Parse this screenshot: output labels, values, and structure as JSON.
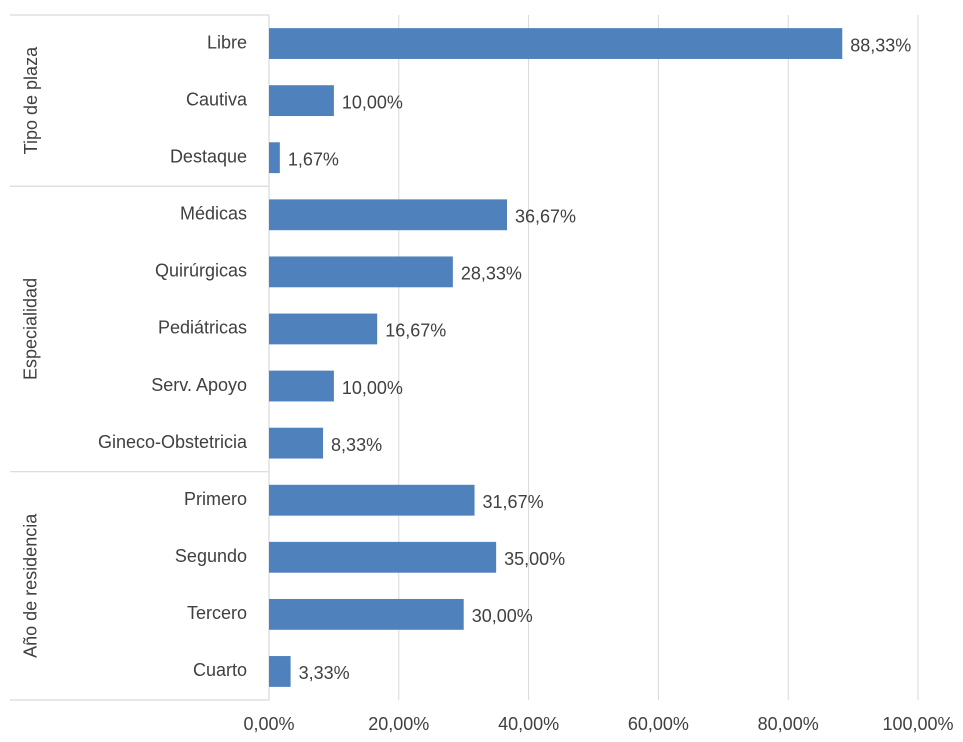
{
  "chart_data": {
    "type": "bar",
    "orientation": "horizontal",
    "color": "#4f81bd",
    "grid": true,
    "xlim": [
      0,
      100
    ],
    "xticks": [
      {
        "value": 0,
        "label": "0,00%"
      },
      {
        "value": 20,
        "label": "20,00%"
      },
      {
        "value": 40,
        "label": "40,00%"
      },
      {
        "value": 60,
        "label": "60,00%"
      },
      {
        "value": 80,
        "label": "80,00%"
      },
      {
        "value": 100,
        "label": "100,00%"
      }
    ],
    "groups": [
      {
        "label": "Tipo de plaza",
        "categories": [
          "Libre",
          "Cautiva",
          "Destaque"
        ],
        "values": [
          88.33,
          10.0,
          1.67
        ],
        "value_labels": [
          "88,33%",
          "10,00%",
          "1,67%"
        ]
      },
      {
        "label": "Especialidad",
        "categories": [
          "Médicas",
          "Quirúrgicas",
          "Pediátricas",
          "Serv. Apoyo",
          "Gineco-Obstetricia"
        ],
        "values": [
          36.67,
          28.33,
          16.67,
          10.0,
          8.33
        ],
        "value_labels": [
          "36,67%",
          "28,33%",
          "16,67%",
          "10,00%",
          "8,33%"
        ]
      },
      {
        "label": "Año de residencia",
        "categories": [
          "Primero",
          "Segundo",
          "Tercero",
          "Cuarto"
        ],
        "values": [
          31.67,
          35.0,
          30.0,
          3.33
        ],
        "value_labels": [
          "31,67%",
          "35,00%",
          "30,00%",
          "3,33%"
        ]
      }
    ]
  }
}
